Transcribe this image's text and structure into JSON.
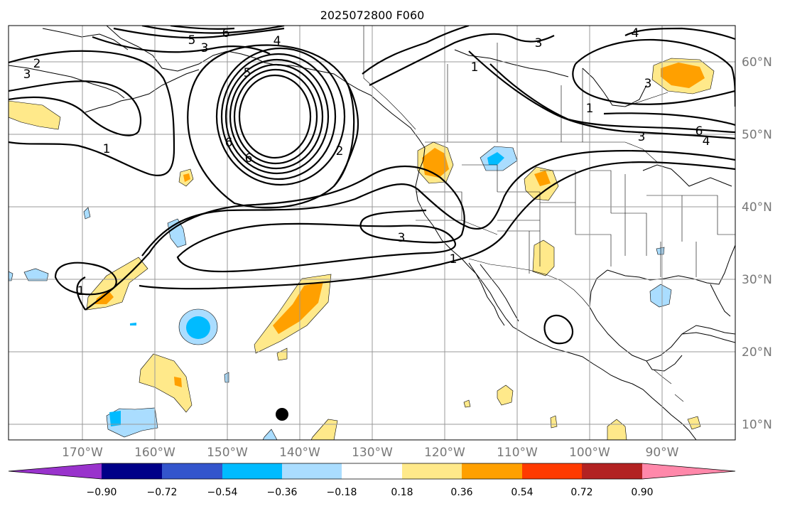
{
  "title": "2025072800 F060",
  "latitude_labels": [
    "60°N",
    "50°N",
    "40°N",
    "30°N",
    "20°N",
    "10°N"
  ],
  "longitude_labels": [
    "170°W",
    "160°W",
    "150°W",
    "140°W",
    "130°W",
    "120°W",
    "110°W",
    "100°W",
    "90°W"
  ],
  "colorbar": {
    "tick_labels": [
      "−0.90",
      "−0.72",
      "−0.54",
      "−0.36",
      "−0.18",
      "0.18",
      "0.36",
      "0.54",
      "0.72",
      "0.90"
    ],
    "colors": [
      "#9933cc",
      "#000088",
      "#3355cc",
      "#00bbff",
      "#aaddff",
      "#ffffff",
      "#ffe98a",
      "#ffa000",
      "#ff3a00",
      "#b22222",
      "#ff88aa"
    ]
  },
  "contour_labels": [
    "6",
    "5",
    "3",
    "4",
    "2",
    "3",
    "3",
    "1",
    "1",
    "6",
    "5",
    "6",
    "4",
    "2",
    "1",
    "3",
    "6",
    "4",
    "3",
    "3",
    "1",
    "1"
  ],
  "palette": {
    "yellow": "#ffe98a",
    "orange": "#ffa000",
    "light_blue": "#aaddff",
    "blue": "#00bbff",
    "ocean_marker": "#000000"
  }
}
